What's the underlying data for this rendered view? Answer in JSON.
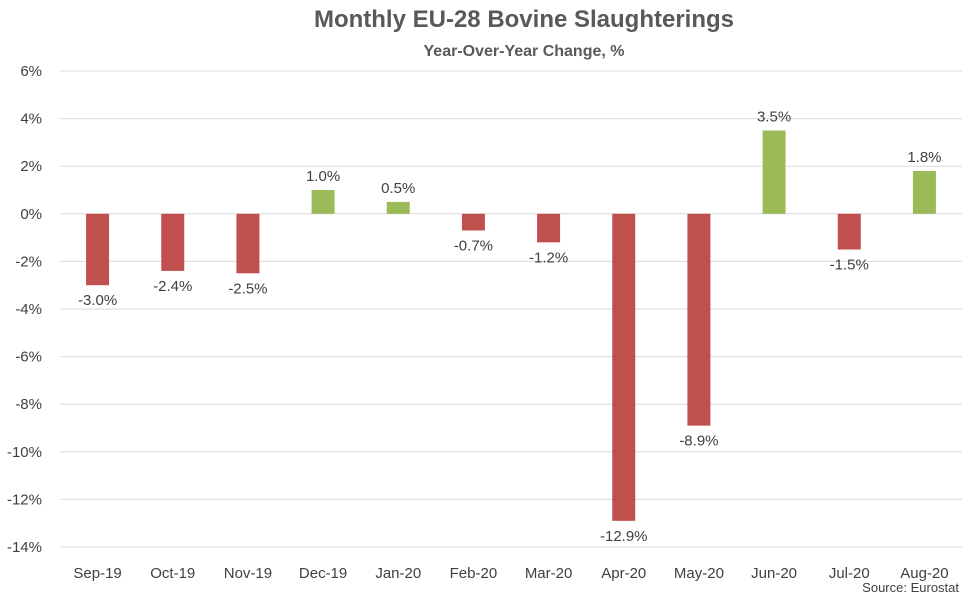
{
  "chart_data": {
    "type": "bar",
    "title": "Monthly EU-28 Bovine Slaughterings",
    "subtitle": "Year-Over-Year Change, %",
    "source": "Source: Eurostat",
    "categories": [
      "Sep-19",
      "Oct-19",
      "Nov-19",
      "Dec-19",
      "Jan-20",
      "Feb-20",
      "Mar-20",
      "Apr-20",
      "May-20",
      "Jun-20",
      "Jul-20",
      "Aug-20"
    ],
    "values": [
      -3.0,
      -2.4,
      -2.5,
      1.0,
      0.5,
      -0.7,
      -1.2,
      -12.9,
      -8.9,
      3.5,
      -1.5,
      1.8
    ],
    "data_labels": [
      "-3.0%",
      "-2.4%",
      "-2.5%",
      "1.0%",
      "0.5%",
      "-0.7%",
      "-1.2%",
      "-12.9%",
      "-8.9%",
      "3.5%",
      "-1.5%",
      "1.8%"
    ],
    "ylim": [
      -14,
      6
    ],
    "yticks": [
      6,
      4,
      2,
      0,
      -2,
      -4,
      -6,
      -8,
      -10,
      -12,
      -14
    ],
    "ytick_labels": [
      "6%",
      "4%",
      "2%",
      "0%",
      "-2%",
      "-4%",
      "-6%",
      "-8%",
      "-10%",
      "-12%",
      "-14%"
    ],
    "grid": true,
    "legend": "none",
    "colors": {
      "positive": "#9BBB59",
      "negative": "#C0504D",
      "grid": "#D9D9D9"
    }
  }
}
